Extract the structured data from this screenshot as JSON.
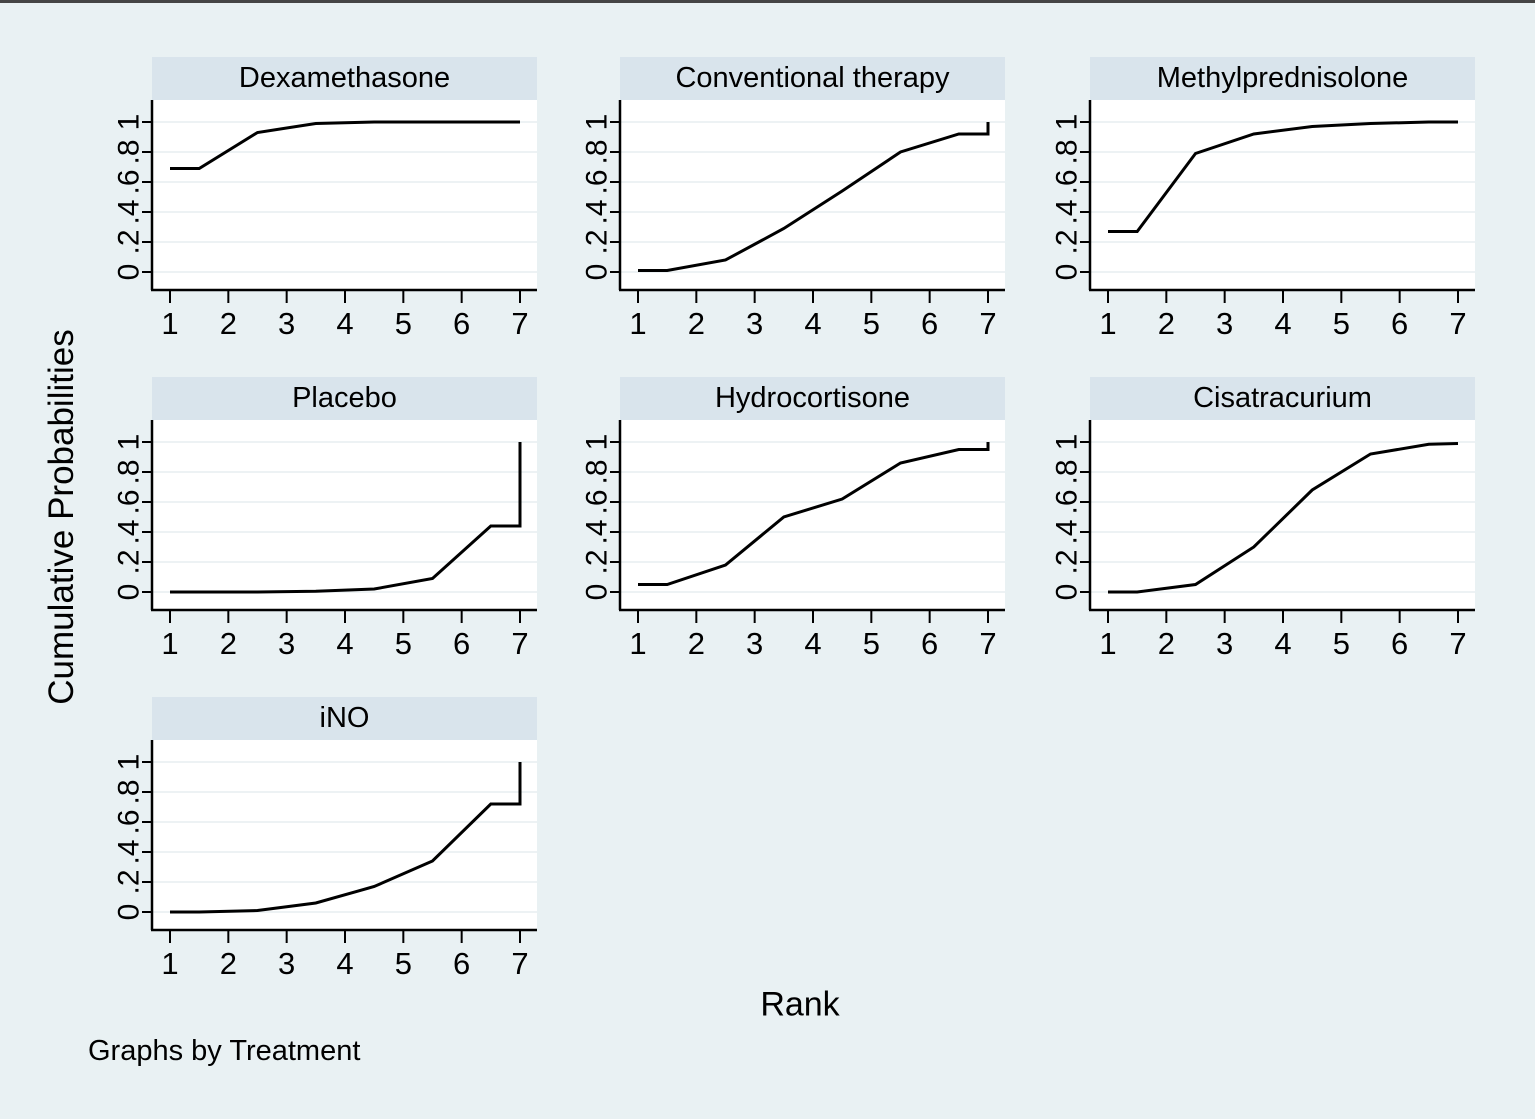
{
  "figure": {
    "ylabel": "Cumulative Probabilities",
    "xlabel": "Rank",
    "caption": "Graphs by Treatment"
  },
  "chart_data": {
    "type": "line",
    "layout": "small-multiples by Treatment, 3 columns",
    "title": "",
    "xlabel": "Rank",
    "ylabel": "Cumulative Probabilities",
    "caption": "Graphs by Treatment",
    "x_ticks": [
      1,
      2,
      3,
      4,
      5,
      6,
      7
    ],
    "xlim": [
      0.7,
      7.3
    ],
    "y_ticks": [
      0,
      0.2,
      0.4,
      0.6,
      0.8,
      1
    ],
    "y_tick_labels": [
      "0",
      ".2",
      ".4",
      ".6",
      ".8",
      "1"
    ],
    "ylim": [
      -0.12,
      1.15
    ],
    "grid": "horizontal",
    "legend": "none",
    "colors": {
      "background": "#e9f1f3",
      "strip_bg": "#d9e4ec",
      "plot_bg": "#ffffff",
      "gridline": "#e7edf0",
      "axis": "#000000",
      "line": "#000000"
    },
    "panels": [
      {
        "title": "Dexamethasone",
        "points": [
          [
            1,
            0.69
          ],
          [
            1.5,
            0.69
          ],
          [
            2.5,
            0.93
          ],
          [
            3.5,
            0.99
          ],
          [
            4.5,
            1
          ],
          [
            5.5,
            1
          ],
          [
            6.5,
            1
          ],
          [
            7,
            1
          ]
        ]
      },
      {
        "title": "Conventional therapy",
        "points": [
          [
            1,
            0.01
          ],
          [
            1.5,
            0.01
          ],
          [
            2.5,
            0.08
          ],
          [
            3.5,
            0.29
          ],
          [
            4.5,
            0.54
          ],
          [
            5.5,
            0.8
          ],
          [
            6.5,
            0.92
          ],
          [
            7,
            0.92
          ],
          [
            7,
            1
          ]
        ]
      },
      {
        "title": "Methylprednisolone",
        "points": [
          [
            1,
            0.27
          ],
          [
            1.5,
            0.27
          ],
          [
            2.5,
            0.79
          ],
          [
            3.5,
            0.92
          ],
          [
            4.5,
            0.97
          ],
          [
            5.5,
            0.99
          ],
          [
            6.5,
            1
          ],
          [
            7,
            1
          ]
        ]
      },
      {
        "title": "Placebo",
        "points": [
          [
            1,
            0
          ],
          [
            1.5,
            0
          ],
          [
            2.5,
            0
          ],
          [
            3.5,
            0.005
          ],
          [
            4.5,
            0.02
          ],
          [
            5.5,
            0.09
          ],
          [
            6.5,
            0.44
          ],
          [
            7,
            0.44
          ],
          [
            7,
            1
          ]
        ]
      },
      {
        "title": "Hydrocortisone",
        "points": [
          [
            1,
            0.05
          ],
          [
            1.5,
            0.05
          ],
          [
            2.5,
            0.18
          ],
          [
            3.5,
            0.5
          ],
          [
            4.5,
            0.62
          ],
          [
            5.5,
            0.86
          ],
          [
            6.5,
            0.95
          ],
          [
            7,
            0.95
          ],
          [
            7,
            1
          ]
        ]
      },
      {
        "title": "Cisatracurium",
        "points": [
          [
            1,
            0
          ],
          [
            1.5,
            0
          ],
          [
            2.5,
            0.05
          ],
          [
            3.5,
            0.3
          ],
          [
            4.5,
            0.68
          ],
          [
            5.5,
            0.92
          ],
          [
            6.5,
            0.985
          ],
          [
            7,
            0.99
          ]
        ]
      },
      {
        "title": "iNO",
        "points": [
          [
            1,
            0
          ],
          [
            1.5,
            0
          ],
          [
            2.5,
            0.01
          ],
          [
            3.5,
            0.06
          ],
          [
            4.5,
            0.17
          ],
          [
            5.5,
            0.34
          ],
          [
            6.5,
            0.72
          ],
          [
            7,
            0.72
          ],
          [
            7,
            1
          ]
        ]
      }
    ]
  }
}
